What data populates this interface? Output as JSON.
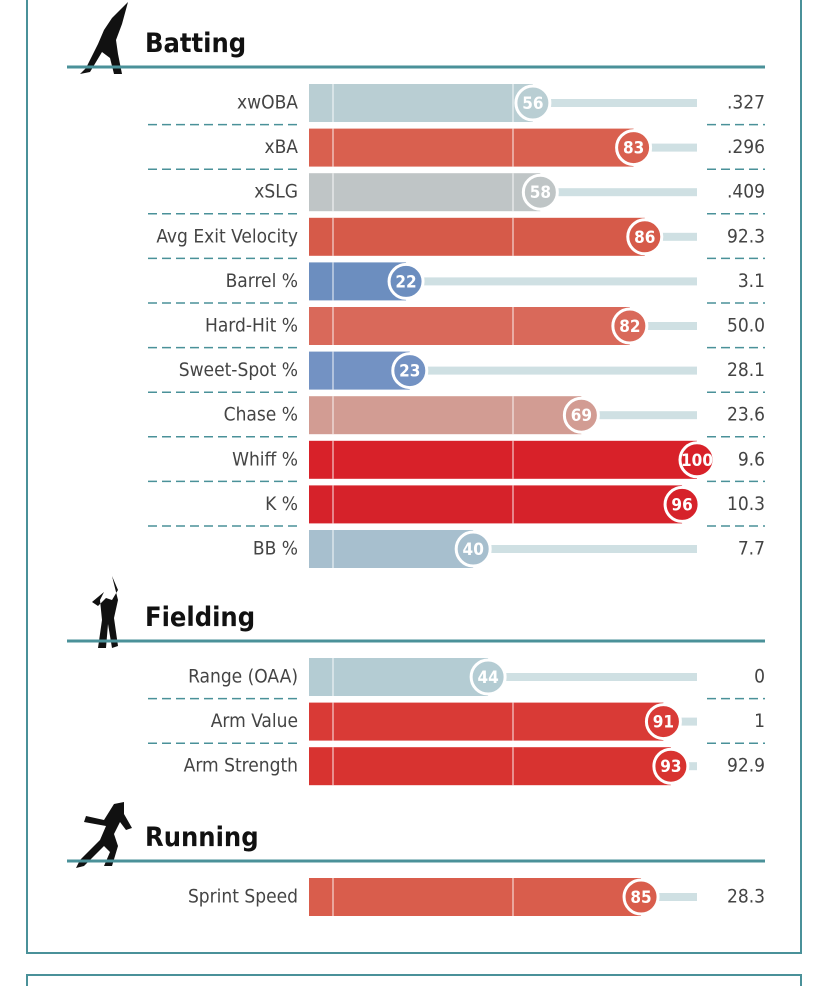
{
  "sections": [
    {
      "title": "Batting",
      "rows": [
        {
          "label": "xwOBA",
          "percentile": 56,
          "value": ".327",
          "color": "#b9ced3"
        },
        {
          "label": "xBA",
          "percentile": 83,
          "value": ".296",
          "color": "#d9604f"
        },
        {
          "label": "xSLG",
          "percentile": 58,
          "value": ".409",
          "color": "#bfc5c6"
        },
        {
          "label": "Avg Exit Velocity",
          "percentile": 86,
          "value": "92.3",
          "color": "#d65a49"
        },
        {
          "label": "Barrel %",
          "percentile": 22,
          "value": "3.1",
          "color": "#6c8ebf"
        },
        {
          "label": "Hard-Hit %",
          "percentile": 82,
          "value": "50.0",
          "color": "#d9695a"
        },
        {
          "label": "Sweet-Spot %",
          "percentile": 23,
          "value": "28.1",
          "color": "#7392c3"
        },
        {
          "label": "Chase %",
          "percentile": 69,
          "value": "23.6",
          "color": "#d29c93"
        },
        {
          "label": "Whiff %",
          "percentile": 100,
          "value": "9.6",
          "color": "#d82129"
        },
        {
          "label": "K %",
          "percentile": 96,
          "value": "10.3",
          "color": "#d6222a"
        },
        {
          "label": "BB %",
          "percentile": 40,
          "value": "7.7",
          "color": "#a7bfce"
        }
      ]
    },
    {
      "title": "Fielding",
      "rows": [
        {
          "label": "Range (OAA)",
          "percentile": 44,
          "value": "0",
          "color": "#b4ccd3"
        },
        {
          "label": "Arm Value",
          "percentile": 91,
          "value": "1",
          "color": "#d93a36"
        },
        {
          "label": "Arm Strength",
          "percentile": 93,
          "value": "92.9",
          "color": "#d83330"
        }
      ]
    },
    {
      "title": "Running",
      "rows": [
        {
          "label": "Sprint Speed",
          "percentile": 85,
          "value": "28.3",
          "color": "#d95d4c"
        }
      ]
    }
  ]
}
